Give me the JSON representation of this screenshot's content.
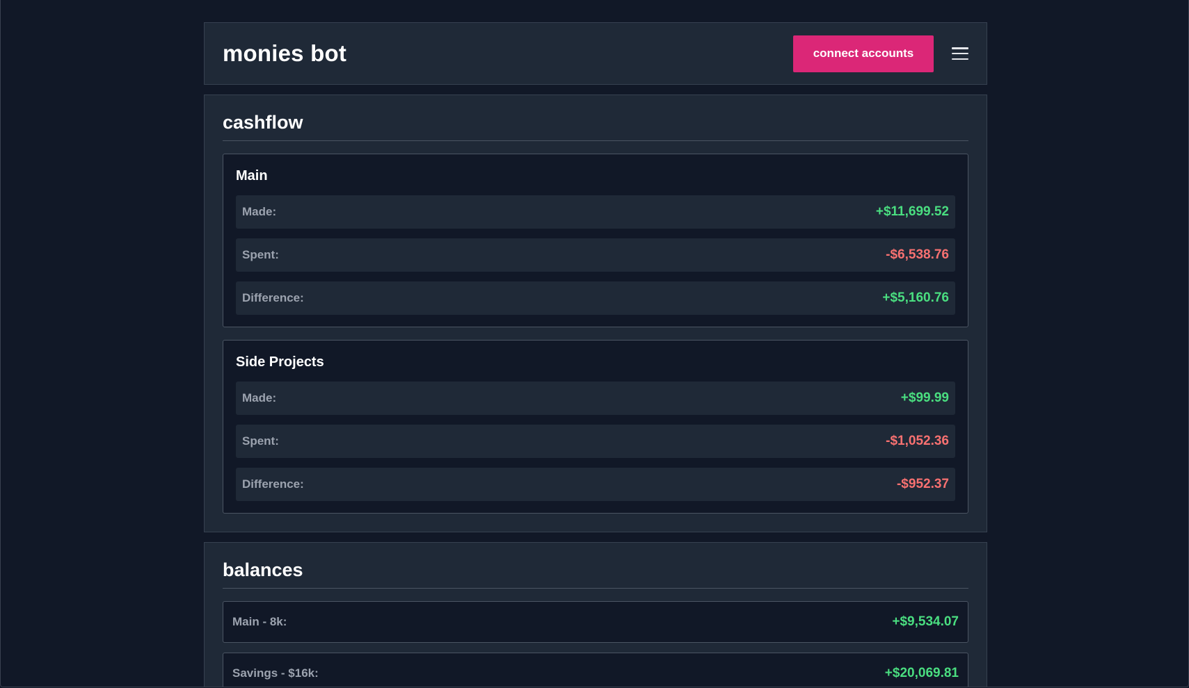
{
  "header": {
    "brand": "monies bot",
    "connect_label": "connect accounts",
    "menu_icon": "hamburger-menu-icon"
  },
  "cashflow": {
    "title": "cashflow",
    "groups": [
      {
        "title": "Main",
        "made_label": "Made:",
        "made": "+$11,699.52",
        "spent_label": "Spent:",
        "spent": "-$6,538.76",
        "difference_label": "Difference:",
        "difference": "+$5,160.76"
      },
      {
        "title": "Side Projects",
        "made_label": "Made:",
        "made": "+$99.99",
        "spent_label": "Spent:",
        "spent": "-$1,052.36",
        "difference_label": "Difference:",
        "difference": "-$952.37"
      }
    ]
  },
  "balances": {
    "title": "balances",
    "items": [
      {
        "label": "Main - 8k:",
        "value": "+$9,534.07"
      },
      {
        "label": "Savings - $16k:",
        "value": "+$20,069.81"
      }
    ]
  },
  "colors": {
    "background": "#111827",
    "card": "#1f2937",
    "accent": "#db2777",
    "positive": "#4ade80",
    "negative": "#f87171"
  }
}
